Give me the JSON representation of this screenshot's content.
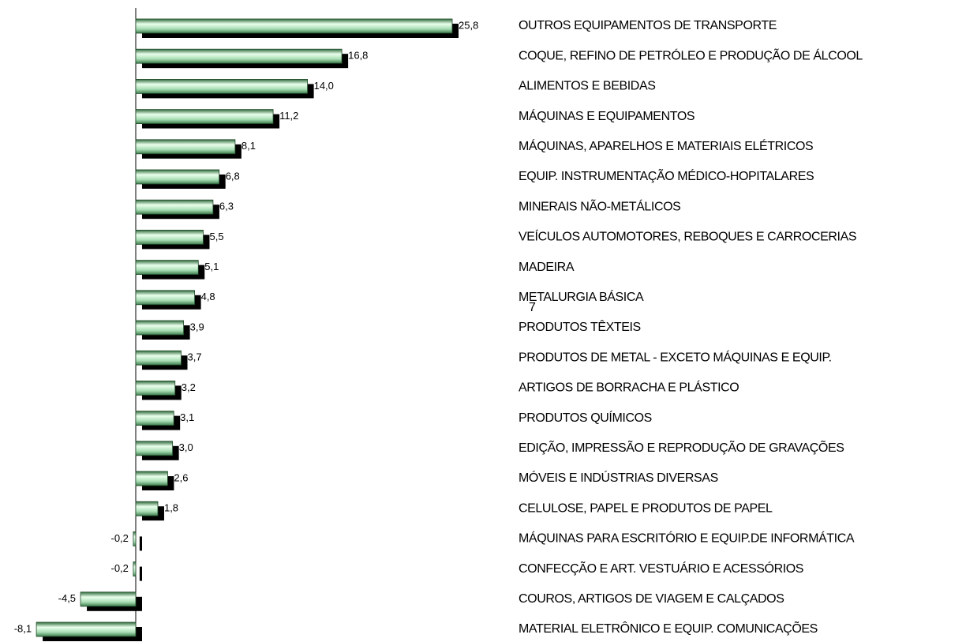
{
  "chart_data": {
    "type": "bar",
    "orientation": "horizontal",
    "categories": [
      "OUTROS EQUIPAMENTOS DE TRANSPORTE",
      "COQUE, REFINO DE PETRÓLEO E PRODUÇÃO DE ÁLCOOL",
      "ALIMENTOS E BEBIDAS",
      "MÁQUINAS E EQUIPAMENTOS",
      "MÁQUINAS, APARELHOS E MATERIAIS ELÉTRICOS",
      "EQUIP. INSTRUMENTAÇÃO MÉDICO-HOPITALARES",
      "MINERAIS NÃO-METÁLICOS",
      "VEÍCULOS AUTOMOTORES, REBOQUES E CARROCERIAS",
      "MADEIRA",
      "METALURGIA BÁSICA",
      "PRODUTOS TÊXTEIS",
      "PRODUTOS DE METAL - EXCETO MÁQUINAS E EQUIP.",
      "ARTIGOS DE BORRACHA E PLÁSTICO",
      "PRODUTOS QUÍMICOS",
      "EDIÇÃO, IMPRESSÃO E REPRODUÇÃO DE GRAVAÇÕES",
      "MÓVEIS E INDÚSTRIAS DIVERSAS",
      "CELULOSE, PAPEL E PRODUTOS DE PAPEL",
      "MÁQUINAS PARA ESCRITÓRIO E EQUIP.DE INFORMÁTICA",
      "CONFECÇÃO E ART. VESTUÁRIO E ACESSÓRIOS",
      "COUROS, ARTIGOS DE VIAGEM E CALÇADOS",
      "MATERIAL ELETRÔNICO E EQUIP. COMUNICAÇÕES"
    ],
    "values": [
      25.8,
      16.8,
      14.0,
      11.2,
      8.1,
      6.8,
      6.3,
      5.5,
      5.1,
      4.8,
      3.9,
      3.7,
      3.2,
      3.1,
      3.0,
      2.6,
      1.8,
      -0.2,
      -0.2,
      -4.5,
      -8.1
    ],
    "value_labels": [
      "25,8",
      "16,8",
      "14,0",
      "11,2",
      "8,1",
      "6,8",
      "6,3",
      "5,5",
      "5,1",
      "4,8",
      "3,9",
      "3,7",
      "3,2",
      "3,1",
      "3,0",
      "2,6",
      "1,8",
      "-0,2",
      "-0,2",
      "-4,5",
      "-8,1"
    ],
    "color": "#9edcae",
    "annotation": "7"
  }
}
